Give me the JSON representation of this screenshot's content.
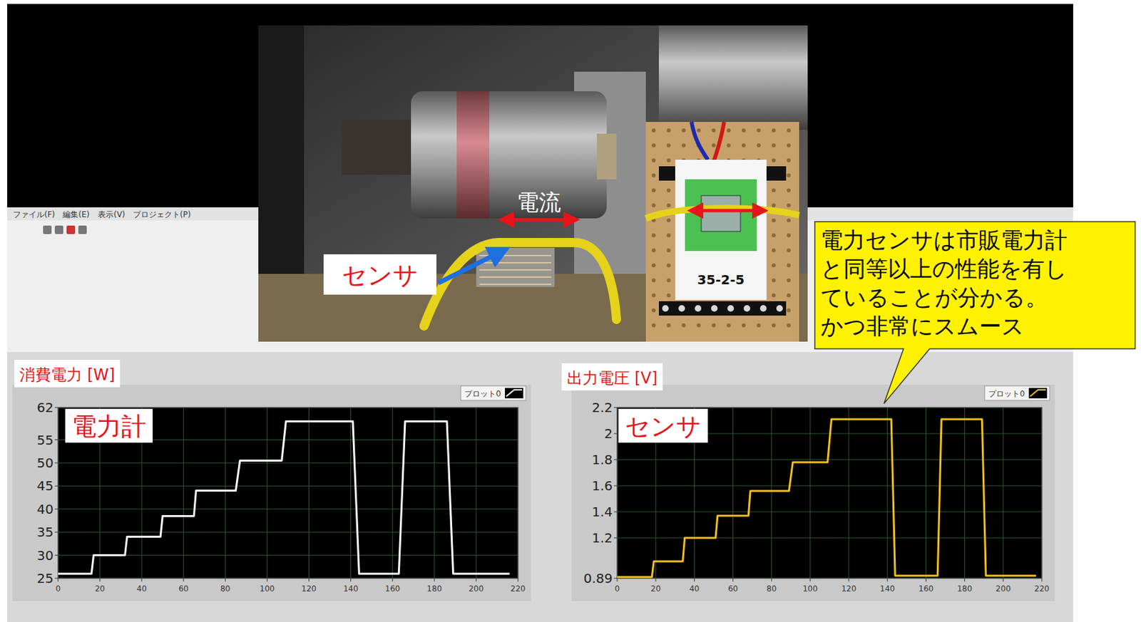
{
  "chart_data": [
    {
      "type": "line",
      "title": "電力計",
      "ylabel": "消費電力 [W]",
      "x": [
        0,
        16,
        17,
        32,
        33,
        49,
        50,
        65,
        66,
        85,
        87,
        107,
        109,
        141,
        144,
        163,
        166,
        186,
        189,
        216
      ],
      "series": [
        {
          "name": "プロット0",
          "color": "#ffffff",
          "values": [
            26,
            26,
            30,
            30,
            34,
            34,
            38.5,
            38.5,
            44,
            44,
            50.5,
            50.5,
            59,
            59,
            26,
            26,
            59,
            59,
            26,
            26
          ]
        }
      ],
      "xlim": [
        0,
        220
      ],
      "xticks": [
        0,
        20,
        40,
        60,
        80,
        100,
        120,
        140,
        160,
        180,
        200,
        220
      ],
      "ylim": [
        25,
        62
      ],
      "yticks": [
        25,
        30,
        35,
        40,
        45,
        50,
        55,
        62
      ],
      "grid": true,
      "legend": "top right"
    },
    {
      "type": "line",
      "title": "センサ",
      "ylabel": "出力電圧 [V]",
      "x": [
        0,
        18,
        19,
        34,
        35,
        51,
        52,
        68,
        69,
        89,
        91,
        109,
        111,
        142,
        144,
        166,
        168,
        189,
        191,
        217
      ],
      "series": [
        {
          "name": "プロット0",
          "color": "#f0c020",
          "values": [
            0.9,
            0.9,
            1.02,
            1.02,
            1.2,
            1.2,
            1.37,
            1.37,
            1.56,
            1.56,
            1.78,
            1.78,
            2.11,
            2.11,
            0.91,
            0.91,
            2.11,
            2.11,
            0.91,
            0.91
          ]
        }
      ],
      "xlim": [
        0,
        220
      ],
      "xticks": [
        0,
        20,
        40,
        60,
        80,
        100,
        120,
        140,
        160,
        180,
        200,
        220
      ],
      "ylim": [
        0.89,
        2.2
      ],
      "yticks": [
        0.89,
        1.2,
        1.4,
        1.6,
        1.8,
        2,
        2.2
      ],
      "grid": true,
      "legend": "top right"
    }
  ],
  "photo": {
    "current_label": "電流",
    "sensor_label": "センサ",
    "board_label": "35-2-5"
  },
  "window_menu": [
    "ファイル(F)",
    "編集(E)",
    "表示(V)",
    "プロジェクト(P)"
  ],
  "callout": {
    "lines": [
      "電力センサは市販電力計",
      "と同等以上の性能を有し",
      "ていることが分かる。",
      "かつ非常にスムース"
    ]
  }
}
